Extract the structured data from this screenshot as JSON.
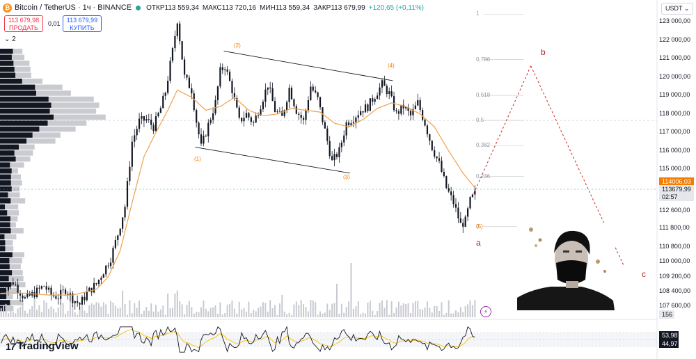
{
  "header": {
    "coin_glyph": "₿",
    "title": "Bitcoin / TetherUS · 1ч · BINANCE",
    "open": "ОТКР113 559,34",
    "high": "МАКС113 720,16",
    "low": "МИН113 559,34",
    "close": "ЗАКР113 679,99",
    "change": "+120,65 (+0,11%)"
  },
  "trade": {
    "sell_price": "113 679,98",
    "sell_label": "ПРОДАТЬ",
    "spread": "0,01",
    "buy_price": "113 679,99",
    "buy_label": "КУПИТЬ",
    "collapse": "⌄ 2"
  },
  "axis": {
    "currency": "USDT ⌄",
    "price_ticks": [
      "123 000,00",
      "122 000,00",
      "121 000,00",
      "120 000,00",
      "119 000,00",
      "118 000,00",
      "117 000,00",
      "116 000,00",
      "115 000,00",
      "111 800,00",
      "110 800,00",
      "110 000,00",
      "109 200,00",
      "108 400,00",
      "107 600,00"
    ],
    "tag_ma": "114006,03",
    "tag_price": "113679,99",
    "tag_timer": "02:57",
    "tick_112600": "112 600,00",
    "volume_label": "156",
    "rsi_value": "53,98",
    "rsi_ma_value": "44,97"
  },
  "fib": {
    "levels": [
      "1",
      "0,786",
      "0,618",
      "0,5",
      "0,382",
      "0,236",
      "0"
    ]
  },
  "waves": {
    "w1": "(1)",
    "w2": "(2)",
    "w3": "(3)",
    "w4": "(4)",
    "w5": "(5)",
    "a": "a",
    "b": "b",
    "c": "c"
  },
  "logo": {
    "mark": "17",
    "text": "TradingView"
  },
  "colors": {
    "candle": "#131722",
    "ma": "#f0a04b",
    "wave_label": "#f57c00",
    "abc_label": "#b71c1c",
    "projection": "#c62828",
    "rsi": "#131722",
    "rsi_ma": "#f5c518",
    "volume": "#c8cad0",
    "volume_profile_dark": "#131722",
    "volume_profile_light": "#c9cbd1"
  },
  "chart_data": {
    "type": "candlestick",
    "symbol": "Bitcoin / TetherUS",
    "interval": "1ч",
    "exchange": "BINANCE",
    "y_range": [
      107200,
      123400
    ],
    "price_path": [
      [
        0,
        108500
      ],
      [
        5,
        108900
      ],
      [
        10,
        108000
      ],
      [
        14,
        108300
      ],
      [
        18,
        108700
      ],
      [
        21,
        108200
      ],
      [
        24,
        108100
      ],
      [
        27,
        108500
      ],
      [
        30,
        108000
      ],
      [
        33,
        107700
      ],
      [
        36,
        108300
      ],
      [
        40,
        108800
      ],
      [
        43,
        109500
      ],
      [
        46,
        110200
      ],
      [
        49,
        111500
      ],
      [
        52,
        113000
      ],
      [
        55,
        116500
      ],
      [
        58,
        117600
      ],
      [
        61,
        117700
      ],
      [
        64,
        117300
      ],
      [
        67,
        118300
      ],
      [
        69,
        119200
      ],
      [
        72,
        121400
      ],
      [
        74,
        123100
      ],
      [
        77,
        120000
      ],
      [
        80,
        119300
      ],
      [
        82,
        117600
      ],
      [
        84,
        116200
      ],
      [
        87,
        117400
      ],
      [
        90,
        118600
      ],
      [
        92,
        120300
      ],
      [
        94,
        120600
      ],
      [
        97,
        119300
      ],
      [
        100,
        117600
      ],
      [
        103,
        118000
      ],
      [
        106,
        117500
      ],
      [
        109,
        118500
      ],
      [
        112,
        119600
      ],
      [
        115,
        118200
      ],
      [
        118,
        117800
      ],
      [
        121,
        119400
      ],
      [
        124,
        118200
      ],
      [
        127,
        117600
      ],
      [
        130,
        119500
      ],
      [
        133,
        118800
      ],
      [
        136,
        117100
      ],
      [
        139,
        115400
      ],
      [
        142,
        116000
      ],
      [
        145,
        117500
      ],
      [
        148,
        117800
      ],
      [
        151,
        118200
      ],
      [
        154,
        118400
      ],
      [
        157,
        119000
      ],
      [
        160,
        119600
      ],
      [
        163,
        119100
      ],
      [
        166,
        118000
      ],
      [
        169,
        118400
      ],
      [
        172,
        117900
      ],
      [
        175,
        118600
      ],
      [
        178,
        117500
      ],
      [
        181,
        116200
      ],
      [
        184,
        115300
      ],
      [
        187,
        114000
      ],
      [
        190,
        113200
      ],
      [
        193,
        112000
      ],
      [
        195,
        112200
      ],
      [
        197,
        113300
      ],
      [
        199,
        113680
      ]
    ],
    "ma_path": [
      [
        0,
        108300
      ],
      [
        10,
        108300
      ],
      [
        20,
        108200
      ],
      [
        30,
        108200
      ],
      [
        40,
        108500
      ],
      [
        45,
        109200
      ],
      [
        50,
        110600
      ],
      [
        55,
        113200
      ],
      [
        60,
        115700
      ],
      [
        65,
        117000
      ],
      [
        70,
        118200
      ],
      [
        74,
        119300
      ],
      [
        80,
        118900
      ],
      [
        86,
        118200
      ],
      [
        92,
        118400
      ],
      [
        98,
        118900
      ],
      [
        104,
        118200
      ],
      [
        110,
        117900
      ],
      [
        116,
        118000
      ],
      [
        122,
        118300
      ],
      [
        128,
        118200
      ],
      [
        134,
        118100
      ],
      [
        140,
        117500
      ],
      [
        146,
        117300
      ],
      [
        152,
        117700
      ],
      [
        158,
        118300
      ],
      [
        164,
        118600
      ],
      [
        170,
        118400
      ],
      [
        176,
        118000
      ],
      [
        182,
        117300
      ],
      [
        188,
        116000
      ],
      [
        194,
        114800
      ],
      [
        199,
        114006
      ]
    ],
    "last_price": 113679.99,
    "ma_value": 114006.03,
    "fibonacci": {
      "levels": [
        1,
        0.786,
        0.618,
        0.5,
        0.382,
        0.236,
        0
      ],
      "price_at_0": 111900,
      "price_at_1": 123400
    },
    "channel": {
      "upper": [
        [
          94,
          121400
        ],
        [
          165,
          119800
        ]
      ],
      "lower": [
        [
          82,
          116200
        ],
        [
          147,
          114800
        ]
      ]
    },
    "wave_points": [
      {
        "label": "(1)",
        "t": 81,
        "price": 116100
      },
      {
        "label": "(2)",
        "t": 95,
        "price": 121500
      },
      {
        "label": "(3)",
        "t": 140,
        "price": 114900
      },
      {
        "label": "(4)",
        "t": 160,
        "price": 120000
      },
      {
        "label": "(5)",
        "t": 197,
        "price": 112000
      }
    ],
    "projection": [
      {
        "label": "a",
        "t": 199,
        "price": 113700
      },
      {
        "label": "b",
        "t": 223,
        "price": 120600
      },
      {
        "label": "c",
        "t": 262,
        "price": 109800
      }
    ],
    "rsi": {
      "value": 53.98,
      "ma": 44.97,
      "range": [
        0,
        100
      ]
    },
    "volume": {
      "last": 156
    }
  }
}
